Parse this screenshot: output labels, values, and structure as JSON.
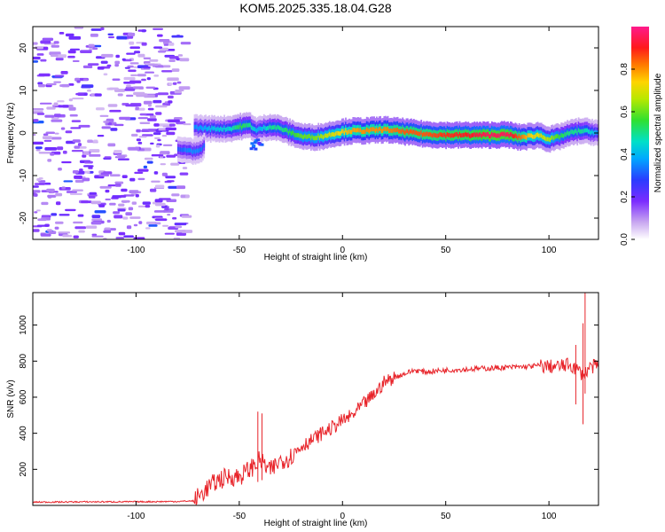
{
  "title": "KOM5.2025.335.18.04.G28",
  "chart_data": [
    {
      "type": "heatmap",
      "xlabel": "Height of straight line (km)",
      "ylabel": "Frequency (Hz)",
      "xlim": [
        -150,
        124
      ],
      "ylim": [
        -25,
        25
      ],
      "xticks": [
        -100,
        -50,
        0,
        50,
        100
      ],
      "xtick_labels": [
        "-100",
        "-50",
        "0",
        "50",
        "100"
      ],
      "yticks": [
        -20,
        -10,
        0,
        10,
        20
      ],
      "ytick_labels": [
        "-20",
        "-10",
        "0",
        "10",
        "20"
      ],
      "colorbar": {
        "label": "Normalized spectral amplitude",
        "range": [
          0,
          1
        ],
        "ticks": [
          0,
          0.2,
          0.4,
          0.6,
          0.8
        ],
        "tick_labels": [
          "0.0",
          "0.2",
          "0.4",
          "0.6",
          "0.8"
        ]
      },
      "ridge": {
        "x": [
          -72,
          -65,
          -55,
          -50,
          -45,
          -42,
          -40,
          -35,
          -30,
          -25,
          -20,
          -15,
          -10,
          -5,
          0,
          5,
          10,
          20,
          30,
          40,
          50,
          60,
          70,
          80,
          85,
          90,
          95,
          100,
          105,
          110,
          115,
          120,
          124
        ],
        "freq": [
          1.3,
          1.0,
          1.0,
          1.5,
          1.8,
          0.5,
          1.0,
          1.5,
          1.0,
          0.0,
          -0.8,
          -1.0,
          -0.8,
          -0.2,
          0.3,
          0.5,
          0.5,
          0.8,
          0.3,
          -0.3,
          -0.5,
          -0.5,
          -0.5,
          -0.4,
          -1.0,
          -0.8,
          -0.5,
          -1.5,
          -0.8,
          0.0,
          0.5,
          0.3,
          0.0
        ],
        "amplitude": [
          0.35,
          0.4,
          0.45,
          0.55,
          0.5,
          0.4,
          0.4,
          0.5,
          0.5,
          0.55,
          0.6,
          0.6,
          0.65,
          0.7,
          0.75,
          0.78,
          0.8,
          0.8,
          0.85,
          0.85,
          0.88,
          0.9,
          0.95,
          0.95,
          0.85,
          0.75,
          0.7,
          0.65,
          0.55,
          0.5,
          0.5,
          0.45,
          0.35
        ]
      },
      "side_branch": {
        "x": [
          -80,
          -75,
          -70,
          -67
        ],
        "freq": [
          -4.0,
          -4.0,
          -4.5,
          -3.0
        ],
        "amplitude": [
          0.3,
          0.35,
          0.35,
          0.3
        ]
      }
    },
    {
      "type": "line",
      "xlabel": "Height of straight line (km)",
      "ylabel": "SNR (v/v)",
      "xlim": [
        -150,
        124
      ],
      "ylim": [
        0,
        1180
      ],
      "xticks": [
        -100,
        -50,
        0,
        50,
        100
      ],
      "xtick_labels": [
        "-100",
        "-50",
        "0",
        "50",
        "100"
      ],
      "yticks": [
        200,
        400,
        600,
        800,
        1000
      ],
      "ytick_labels": [
        "200",
        "400",
        "600",
        "800",
        "1000"
      ],
      "series": [
        {
          "name": "SNR",
          "color": "#e8242a",
          "x": [
            -150,
            -120,
            -100,
            -80,
            -72,
            -65,
            -60,
            -55,
            -50,
            -45,
            -40,
            -35,
            -30,
            -25,
            -20,
            -15,
            -10,
            -5,
            0,
            5,
            10,
            15,
            20,
            25,
            30,
            35,
            40,
            50,
            60,
            70,
            80,
            90,
            95,
            100,
            105,
            110,
            113,
            115,
            117,
            119,
            121,
            124
          ],
          "y": [
            18,
            20,
            20,
            22,
            25,
            100,
            140,
            160,
            160,
            200,
            250,
            190,
            250,
            270,
            330,
            360,
            400,
            430,
            470,
            500,
            560,
            610,
            680,
            710,
            730,
            750,
            740,
            750,
            755,
            760,
            765,
            770,
            775,
            770,
            770,
            780,
            760,
            740,
            720,
            760,
            770,
            770
          ]
        }
      ],
      "spikes": [
        {
          "x": 113,
          "low": 560,
          "high": 890
        },
        {
          "x": 116.5,
          "low": 450,
          "high": 1010
        },
        {
          "x": 117.5,
          "low": 620,
          "high": 1180
        },
        {
          "x": -41,
          "low": 130,
          "high": 520
        },
        {
          "x": -39,
          "low": 140,
          "high": 510
        }
      ]
    }
  ]
}
